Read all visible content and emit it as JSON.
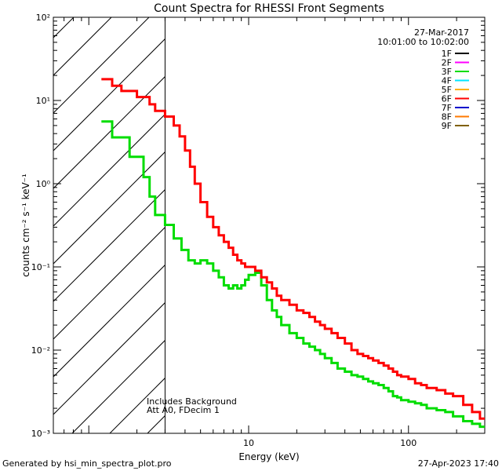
{
  "chart_data": {
    "type": "line",
    "title": "Count Spectra for RHESSI Front Segments",
    "xlabel": "Energy (keV)",
    "ylabel": "counts cm⁻² s⁻¹ keV⁻¹",
    "xscale": "log",
    "yscale": "log",
    "xlim": [
      0.6,
      300
    ],
    "ylim": [
      0.001,
      100
    ],
    "x_ticks": [
      {
        "value": 10,
        "label": "10"
      },
      {
        "value": 100,
        "label": "100"
      }
    ],
    "y_ticks": [
      {
        "value": 0.001,
        "label": "10⁻³"
      },
      {
        "value": 0.01,
        "label": "10⁻²"
      },
      {
        "value": 0.1,
        "label": "10⁻¹"
      },
      {
        "value": 1,
        "label": "10⁰"
      },
      {
        "value": 10,
        "label": "10¹"
      },
      {
        "value": 100,
        "label": "10²"
      }
    ],
    "date": "27-Mar-2017",
    "time_range": "10:01:00 to 10:02:00",
    "excluded_region_upper_kev": 3,
    "annotations": [
      "Includes Background",
      "Att A0, FDecim 1"
    ],
    "legend_position": "top-right",
    "legend": [
      {
        "label": "1F",
        "color": "#000000"
      },
      {
        "label": "2F",
        "color": "#ff00ff"
      },
      {
        "label": "3F",
        "color": "#00dd00"
      },
      {
        "label": "4F",
        "color": "#00e5ff"
      },
      {
        "label": "5F",
        "color": "#ffb000"
      },
      {
        "label": "6F",
        "color": "#ff0000"
      },
      {
        "label": "7F",
        "color": "#0000cc"
      },
      {
        "label": "8F",
        "color": "#ff7a00"
      },
      {
        "label": "9F",
        "color": "#806000"
      }
    ],
    "series": [
      {
        "name": "3F",
        "color": "#00dd00",
        "points": [
          [
            1.2,
            5.6
          ],
          [
            1.4,
            3.6
          ],
          [
            1.6,
            3.6
          ],
          [
            1.8,
            2.1
          ],
          [
            2.0,
            2.1
          ],
          [
            2.2,
            1.2
          ],
          [
            2.4,
            0.7
          ],
          [
            2.6,
            0.42
          ],
          [
            3.0,
            0.32
          ],
          [
            3.4,
            0.22
          ],
          [
            3.8,
            0.16
          ],
          [
            4.2,
            0.12
          ],
          [
            4.6,
            0.11
          ],
          [
            5.0,
            0.12
          ],
          [
            5.5,
            0.11
          ],
          [
            6.0,
            0.09
          ],
          [
            6.5,
            0.075
          ],
          [
            7.0,
            0.06
          ],
          [
            7.5,
            0.055
          ],
          [
            8.0,
            0.06
          ],
          [
            8.5,
            0.055
          ],
          [
            9.0,
            0.06
          ],
          [
            9.5,
            0.07
          ],
          [
            10.0,
            0.08
          ],
          [
            11.0,
            0.085
          ],
          [
            12.0,
            0.06
          ],
          [
            13.0,
            0.04
          ],
          [
            14.0,
            0.03
          ],
          [
            15.0,
            0.025
          ],
          [
            16.0,
            0.02
          ],
          [
            18.0,
            0.016
          ],
          [
            20.0,
            0.014
          ],
          [
            22.0,
            0.012
          ],
          [
            24.0,
            0.011
          ],
          [
            26.0,
            0.01
          ],
          [
            28.0,
            0.009
          ],
          [
            30.0,
            0.008
          ],
          [
            33.0,
            0.007
          ],
          [
            36.0,
            0.006
          ],
          [
            40.0,
            0.0055
          ],
          [
            44.0,
            0.005
          ],
          [
            48.0,
            0.0048
          ],
          [
            52.0,
            0.0045
          ],
          [
            56.0,
            0.0042
          ],
          [
            60.0,
            0.004
          ],
          [
            65.0,
            0.0038
          ],
          [
            70.0,
            0.0035
          ],
          [
            75.0,
            0.0032
          ],
          [
            80.0,
            0.0028
          ],
          [
            85.0,
            0.0027
          ],
          [
            90.0,
            0.0025
          ],
          [
            100.0,
            0.0024
          ],
          [
            110.0,
            0.0023
          ],
          [
            120.0,
            0.0022
          ],
          [
            130.0,
            0.002
          ],
          [
            150.0,
            0.0019
          ],
          [
            170.0,
            0.0018
          ],
          [
            190.0,
            0.0016
          ],
          [
            220.0,
            0.0014
          ],
          [
            250.0,
            0.0013
          ],
          [
            280.0,
            0.0012
          ]
        ]
      },
      {
        "name": "6F",
        "color": "#ff0000",
        "points": [
          [
            1.2,
            18.0
          ],
          [
            1.4,
            15.0
          ],
          [
            1.6,
            13.0
          ],
          [
            1.8,
            13.0
          ],
          [
            2.0,
            11.0
          ],
          [
            2.2,
            11.0
          ],
          [
            2.4,
            9.0
          ],
          [
            2.6,
            7.5
          ],
          [
            3.0,
            6.4
          ],
          [
            3.4,
            5.0
          ],
          [
            3.7,
            3.7
          ],
          [
            4.0,
            2.5
          ],
          [
            4.3,
            1.6
          ],
          [
            4.6,
            1.0
          ],
          [
            5.0,
            0.6
          ],
          [
            5.5,
            0.4
          ],
          [
            6.0,
            0.3
          ],
          [
            6.5,
            0.24
          ],
          [
            7.0,
            0.2
          ],
          [
            7.5,
            0.17
          ],
          [
            8.0,
            0.14
          ],
          [
            8.5,
            0.12
          ],
          [
            9.0,
            0.11
          ],
          [
            9.5,
            0.1
          ],
          [
            10.0,
            0.1
          ],
          [
            11.0,
            0.09
          ],
          [
            12.0,
            0.075
          ],
          [
            13.0,
            0.065
          ],
          [
            14.0,
            0.055
          ],
          [
            15.0,
            0.045
          ],
          [
            16.0,
            0.04
          ],
          [
            18.0,
            0.035
          ],
          [
            20.0,
            0.03
          ],
          [
            22.0,
            0.028
          ],
          [
            24.0,
            0.025
          ],
          [
            26.0,
            0.022
          ],
          [
            28.0,
            0.02
          ],
          [
            30.0,
            0.018
          ],
          [
            33.0,
            0.016
          ],
          [
            36.0,
            0.014
          ],
          [
            40.0,
            0.012
          ],
          [
            44.0,
            0.01
          ],
          [
            48.0,
            0.009
          ],
          [
            52.0,
            0.0085
          ],
          [
            56.0,
            0.008
          ],
          [
            60.0,
            0.0075
          ],
          [
            65.0,
            0.007
          ],
          [
            70.0,
            0.0065
          ],
          [
            75.0,
            0.006
          ],
          [
            80.0,
            0.0055
          ],
          [
            85.0,
            0.005
          ],
          [
            90.0,
            0.0048
          ],
          [
            100.0,
            0.0045
          ],
          [
            110.0,
            0.004
          ],
          [
            120.0,
            0.0038
          ],
          [
            130.0,
            0.0035
          ],
          [
            150.0,
            0.0033
          ],
          [
            170.0,
            0.003
          ],
          [
            190.0,
            0.0028
          ],
          [
            220.0,
            0.0022
          ],
          [
            250.0,
            0.0018
          ],
          [
            280.0,
            0.0015
          ]
        ]
      }
    ]
  },
  "footer": {
    "generated_by": "Generated by hsi_min_spectra_plot.pro",
    "timestamp": "27-Apr-2023 17:40"
  }
}
